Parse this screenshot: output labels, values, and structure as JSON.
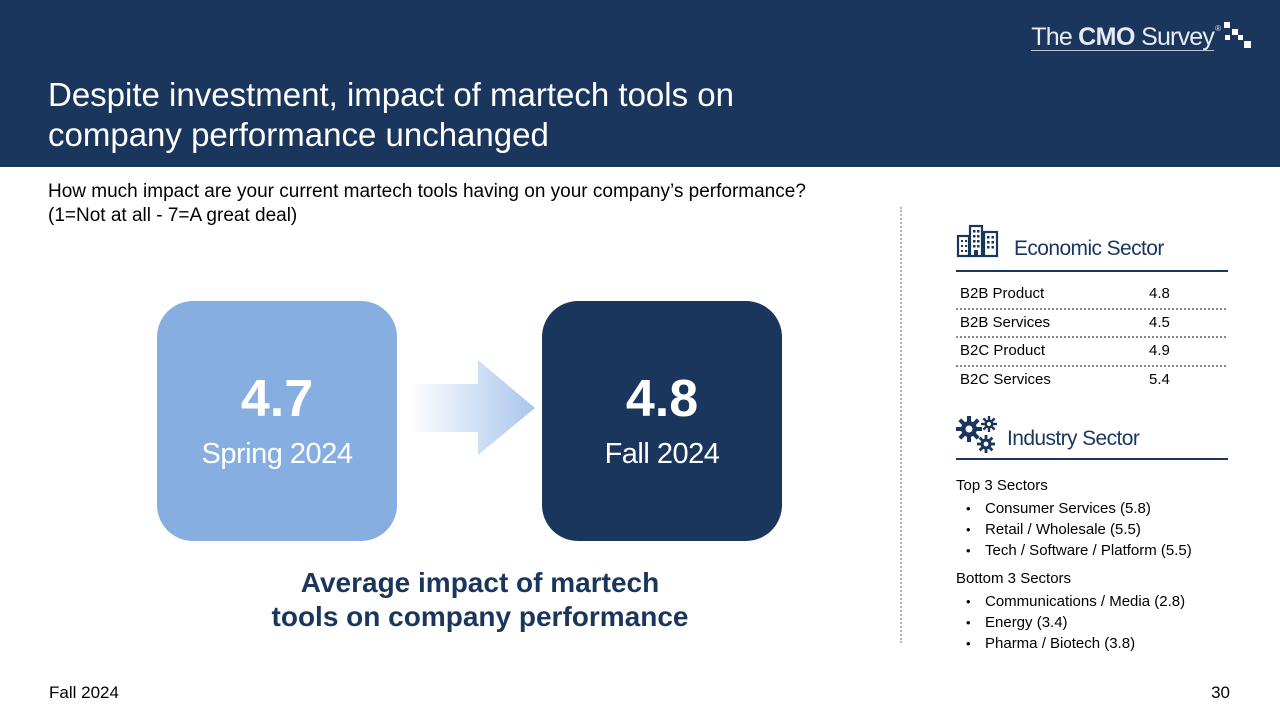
{
  "header": {
    "title_line1": "Despite investment, impact of martech tools on",
    "title_line2": "company performance unchanged",
    "logo": {
      "prefix": "The ",
      "brand": "CMO",
      "suffix": " Survey",
      "reg": "®"
    }
  },
  "question": {
    "line1": "How much impact are your current martech tools having on your company’s performance?",
    "line2": "(1=Not at all - 7=A great deal)"
  },
  "comparison": {
    "before": {
      "value": "4.7",
      "label": "Spring 2024",
      "color": "#86aee0"
    },
    "after": {
      "value": "4.8",
      "label": "Fall 2024",
      "color": "#1b365d"
    },
    "caption_line1": "Average impact of martech",
    "caption_line2": "tools on company performance"
  },
  "economic_sector": {
    "title": "Economic Sector",
    "icon": "buildings-icon",
    "rows": [
      {
        "name": "B2B Product",
        "value": "4.8"
      },
      {
        "name": "B2B Services",
        "value": "4.5"
      },
      {
        "name": "B2C Product",
        "value": "4.9"
      },
      {
        "name": "B2C Services",
        "value": "5.4"
      }
    ]
  },
  "industry_sector": {
    "title": "Industry Sector",
    "icon": "gears-icon",
    "top_label": "Top 3 Sectors",
    "top_items": [
      "Consumer Services (5.8)",
      "Retail / Wholesale (5.5)",
      "Tech / Software / Platform (5.5)"
    ],
    "bottom_label": "Bottom 3 Sectors",
    "bottom_items": [
      "Communications / Media (2.8)",
      "Energy (3.4)",
      "Pharma / Biotech (3.8)"
    ]
  },
  "footer": {
    "edition": "Fall 2024",
    "page_number": "30"
  },
  "colors": {
    "navy": "#1b365d",
    "light_blue": "#86aee0"
  }
}
